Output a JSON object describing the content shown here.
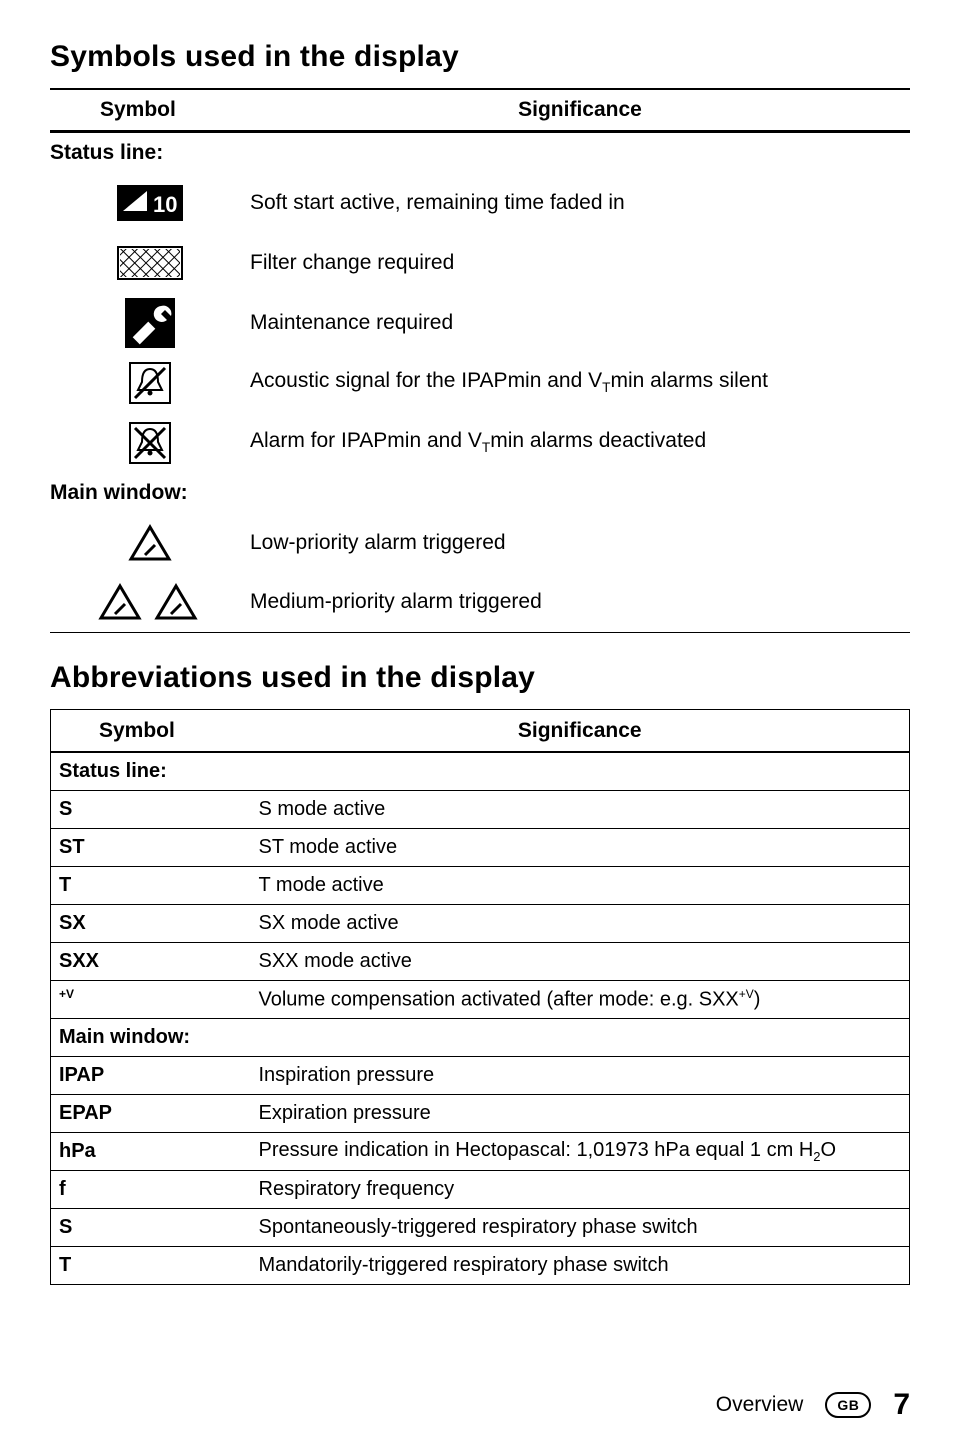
{
  "section1": {
    "title": "Symbols used in the display",
    "headers": {
      "symbol": "Symbol",
      "significance": "Significance"
    },
    "status_line_label": "Status line:",
    "main_window_label": "Main window:",
    "rows_status": [
      {
        "icon": "softstart",
        "text": "Soft start active, remaining time faded in"
      },
      {
        "icon": "filter",
        "text": "Filter change required"
      },
      {
        "icon": "wrench",
        "text": "Maintenance required"
      },
      {
        "icon": "bell-silent",
        "text_html": "Acoustic signal for the IPAPmin and V<sub>T</sub>min alarms silent"
      },
      {
        "icon": "bell-off",
        "text_html": "Alarm for IPAPmin and V<sub>T</sub>min alarms deactivated"
      }
    ],
    "rows_main": [
      {
        "icon": "alarm-low",
        "text": "Low-priority alarm triggered"
      },
      {
        "icon": "alarm-med",
        "text": "Medium-priority alarm triggered"
      }
    ]
  },
  "section2": {
    "title": "Abbreviations used in the display",
    "headers": {
      "symbol": "Symbol",
      "significance": "Significance"
    },
    "status_line_label": "Status line:",
    "main_window_label": " Main window:",
    "rows_status": [
      {
        "sym": "S",
        "text": "S mode active"
      },
      {
        "sym": "ST",
        "text": "ST mode active"
      },
      {
        "sym": "T",
        "text": "T mode active"
      },
      {
        "sym": "SX",
        "text": "SX mode active"
      },
      {
        "sym": "SXX",
        "text": "SXX mode active"
      },
      {
        "sym_html": "<sup>+V</sup>",
        "text_html": "Volume compensation activated (after mode: e.g. <b>SXX</b><sup>+V</sup>)"
      }
    ],
    "rows_main": [
      {
        "sym": "IPAP",
        "text": "Inspiration pressure"
      },
      {
        "sym": "EPAP",
        "text": "Expiration pressure"
      },
      {
        "sym": "hPa",
        "text_html": "Pressure indication in Hectopascal: 1,01973 hPa equal 1 cm H<sub>2</sub>O"
      },
      {
        "sym": "f",
        "text": "Respiratory frequency"
      },
      {
        "sym": "S",
        "text": "Spontaneously-triggered respiratory phase switch"
      },
      {
        "sym": "T",
        "text": "Mandatorily-triggered respiratory phase switch"
      }
    ]
  },
  "footer": {
    "overview": "Overview",
    "gb": "GB",
    "page": "7"
  },
  "colors": {
    "text": "#000000",
    "bg": "#ffffff",
    "border": "#000000"
  }
}
